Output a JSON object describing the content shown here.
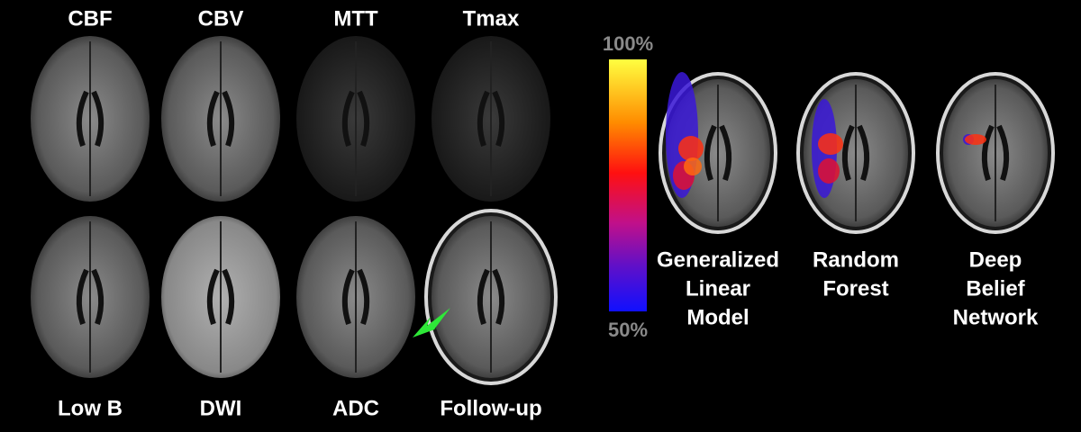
{
  "top_labels": [
    "CBF",
    "CBV",
    "MTT",
    "Tmax"
  ],
  "bottom_labels": [
    "Low B",
    "DWI",
    "ADC",
    "Follow-up"
  ],
  "colorbar": {
    "max_label": "100%",
    "min_label": "50%"
  },
  "models": [
    {
      "lines": [
        "Generalized",
        "Linear",
        "Model"
      ]
    },
    {
      "lines": [
        "Random",
        "Forest"
      ]
    },
    {
      "lines": [
        "Deep",
        "Belief",
        "Network"
      ]
    }
  ]
}
